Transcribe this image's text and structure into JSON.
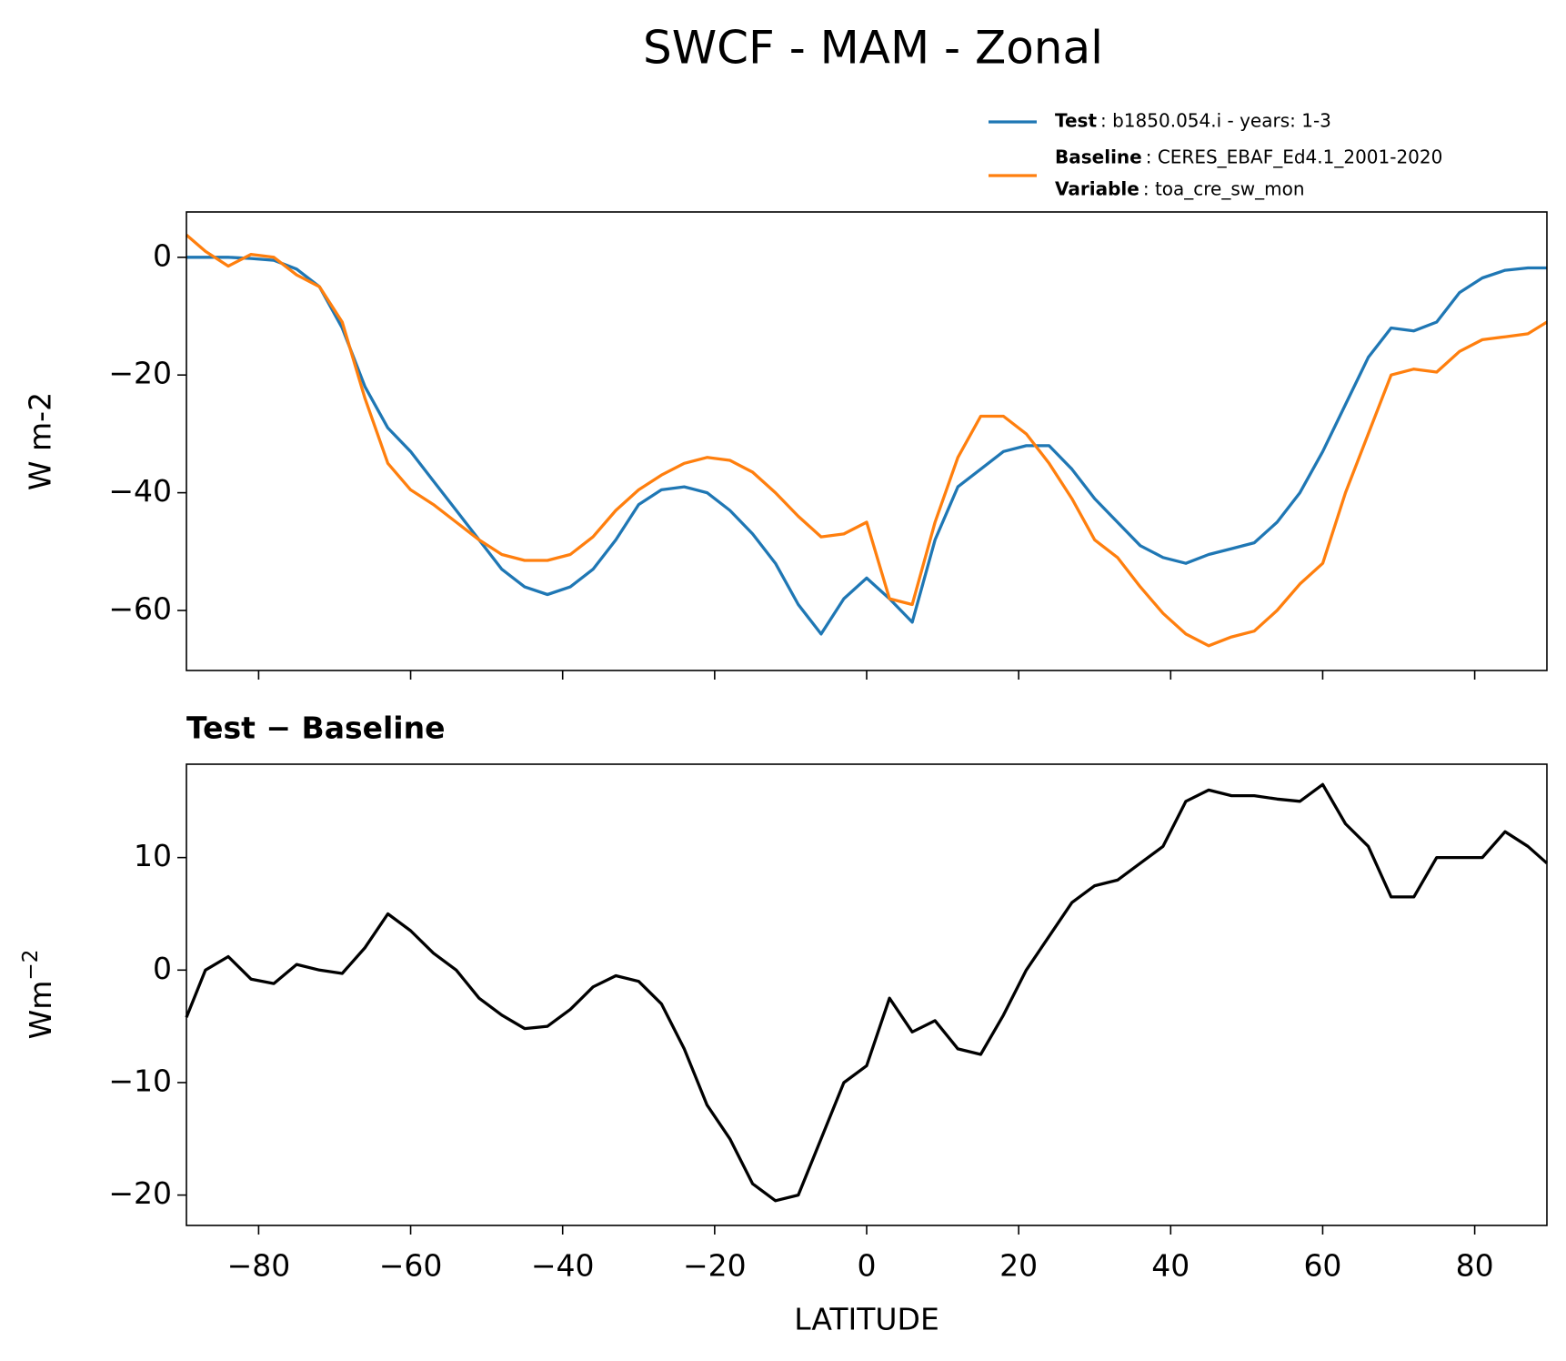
{
  "chart_data": [
    {
      "type": "line",
      "title": "SWCF - MAM - Zonal",
      "ylabel": "W m-2",
      "x": [
        -89.5,
        -87,
        -84,
        -81,
        -78,
        -75,
        -72,
        -69,
        -66,
        -63,
        -60,
        -57,
        -54,
        -51,
        -48,
        -45,
        -42,
        -39,
        -36,
        -33,
        -30,
        -27,
        -24,
        -21,
        -18,
        -15,
        -12,
        -9,
        -6,
        -3,
        0,
        3,
        6,
        9,
        12,
        15,
        18,
        21,
        24,
        27,
        30,
        33,
        36,
        39,
        42,
        45,
        48,
        51,
        54,
        57,
        60,
        63,
        66,
        69,
        72,
        75,
        78,
        81,
        84,
        87,
        89.5
      ],
      "series": [
        {
          "name": "Test",
          "description": ": b1850.054.i - years: 1-3",
          "color": "#1f77b4",
          "values": [
            0,
            0,
            0,
            -0.2,
            -0.5,
            -2,
            -5,
            -12,
            -22,
            -29,
            -33,
            -38,
            -43,
            -48,
            -53,
            -56,
            -57.3,
            -56,
            -53,
            -48,
            -42,
            -39.5,
            -39,
            -40,
            -43,
            -47,
            -52,
            -59,
            -64,
            -58,
            -54.5,
            -58,
            -62,
            -48,
            -39,
            -36,
            -33,
            -32,
            -32,
            -36,
            -41,
            -45,
            -49,
            -51,
            -52,
            -50.5,
            -49.5,
            -48.5,
            -45,
            -40,
            -33,
            -25,
            -17,
            -12,
            -12.5,
            -11,
            -6,
            -3.5,
            -2.2,
            -1.8,
            -1.8
          ]
        },
        {
          "name": "Baseline",
          "description": ": CERES_EBAF_Ed4.1_2001-2020",
          "color": "#ff7f0e",
          "values": [
            3.8,
            1,
            -1.5,
            0.5,
            0,
            -3,
            -5,
            -11,
            -24,
            -35,
            -39.5,
            -42,
            -45,
            -48,
            -50.5,
            -51.5,
            -51.5,
            -50.5,
            -47.5,
            -43,
            -39.5,
            -37,
            -35,
            -34,
            -34.5,
            -36.5,
            -40,
            -44,
            -47.5,
            -47,
            -45,
            -58,
            -59,
            -45,
            -34,
            -27,
            -27,
            -30,
            -35,
            -41,
            -48,
            -51,
            -56,
            -60.5,
            -64,
            -66,
            -64.5,
            -63.5,
            -60,
            -55.5,
            -52,
            -40,
            -30,
            -20,
            -19,
            -19.5,
            -16,
            -14,
            -13.5,
            -13,
            -11
          ]
        }
      ],
      "legend_extra": {
        "name": "Variable",
        "description": ": toa_cre_sw_mon"
      },
      "xlim": [
        -89.5,
        89.5
      ],
      "xticks": [
        -80,
        -60,
        -40,
        -20,
        0,
        20,
        40,
        60,
        80
      ],
      "ylim": [
        -70.2,
        7.7
      ],
      "yticks": [
        {
          "value": -60,
          "label": "−60"
        },
        {
          "value": -40,
          "label": "−40"
        },
        {
          "value": -20,
          "label": "−20"
        },
        0
      ]
    },
    {
      "type": "line",
      "title": "Test − Baseline",
      "xlabel": "LATITUDE",
      "ylabel": "Wm",
      "ylabel_superscript": "−2",
      "x": [
        -89.5,
        -87,
        -84,
        -81,
        -78,
        -75,
        -72,
        -69,
        -66,
        -63,
        -60,
        -57,
        -54,
        -51,
        -48,
        -45,
        -42,
        -39,
        -36,
        -33,
        -30,
        -27,
        -24,
        -21,
        -18,
        -15,
        -12,
        -9,
        -6,
        -3,
        0,
        3,
        6,
        9,
        12,
        15,
        18,
        21,
        24,
        27,
        30,
        33,
        36,
        39,
        42,
        45,
        48,
        51,
        54,
        57,
        60,
        63,
        66,
        69,
        72,
        75,
        78,
        81,
        84,
        87,
        89.5
      ],
      "series": [
        {
          "color": "#000000",
          "values": [
            -4.2,
            0,
            1.2,
            -0.8,
            -1.2,
            0.5,
            0,
            -0.3,
            2,
            5,
            3.5,
            1.5,
            0,
            -2.5,
            -4,
            -5.2,
            -5,
            -3.5,
            -1.5,
            -0.5,
            -1,
            -3,
            -7,
            -12,
            -15,
            -19,
            -20.5,
            -20,
            -15,
            -10,
            -8.5,
            -2.5,
            -5.5,
            -4.5,
            -7,
            -7.5,
            -4,
            0,
            3,
            6,
            7.5,
            8,
            9.5,
            11,
            15,
            16,
            15.5,
            15.5,
            15.2,
            15,
            16.5,
            13,
            11,
            6.5,
            6.5,
            10,
            10,
            10,
            12.3,
            11,
            9.5
          ]
        }
      ],
      "xlim": [
        -89.5,
        89.5
      ],
      "xticks": [
        {
          "value": -80,
          "label": "−80"
        },
        {
          "value": -60,
          "label": "−60"
        },
        {
          "value": -40,
          "label": "−40"
        },
        {
          "value": -20,
          "label": "−20"
        },
        0,
        20,
        40,
        60,
        80
      ],
      "ylim": [
        -22.7,
        18.3
      ],
      "yticks": [
        {
          "value": -20,
          "label": "−20"
        },
        {
          "value": -10,
          "label": "−10"
        },
        0,
        10
      ]
    }
  ]
}
